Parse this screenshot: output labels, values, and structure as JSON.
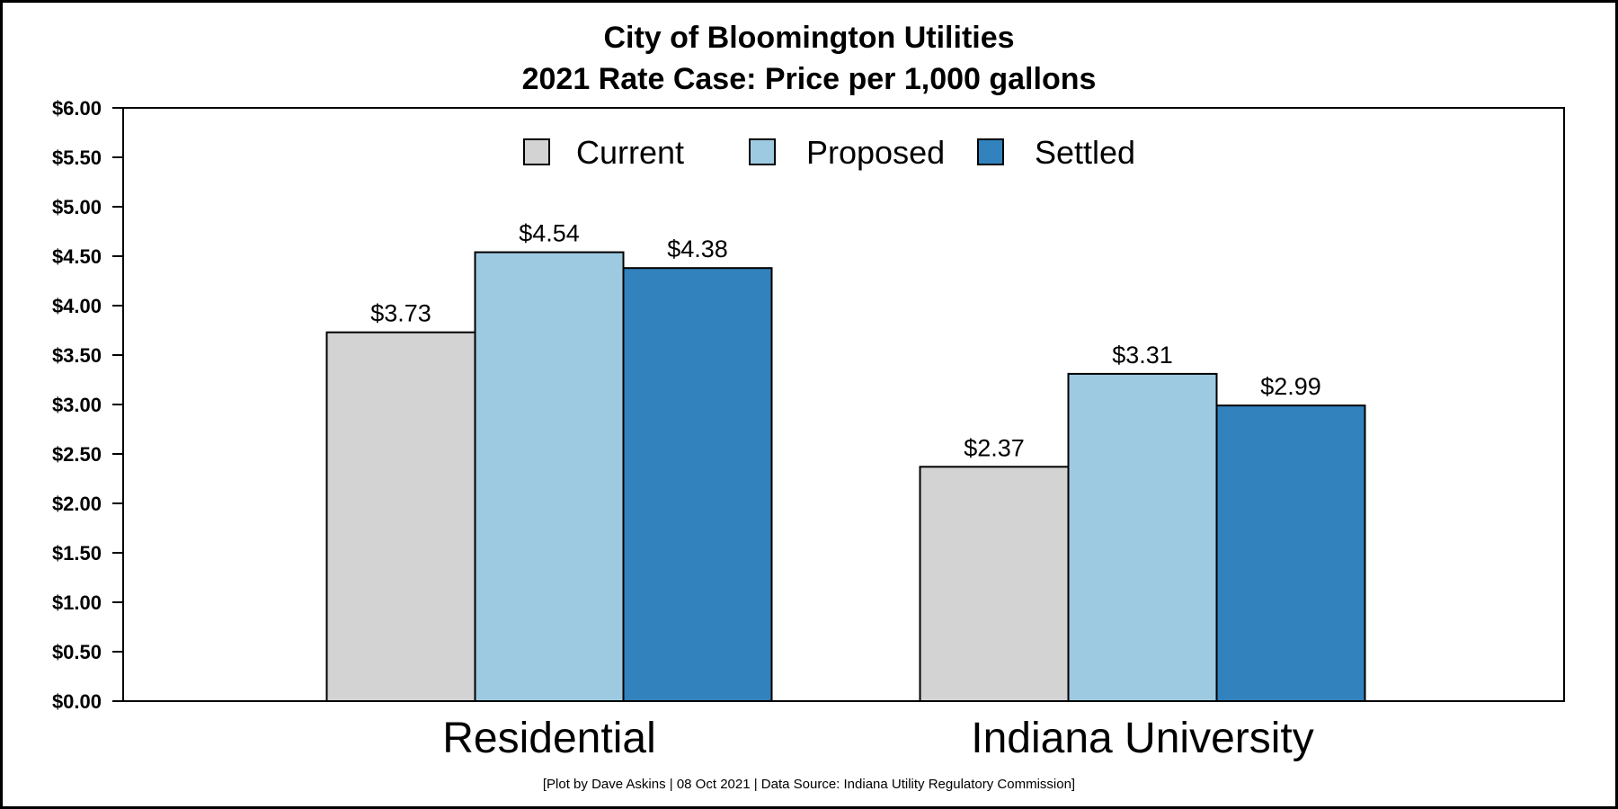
{
  "chart_data": {
    "type": "bar",
    "title": "City of Bloomington Utilities",
    "subtitle": "2021 Rate Case: Price per 1,000 gallons",
    "categories": [
      "Residential",
      "Indiana University"
    ],
    "series": [
      {
        "name": "Current",
        "values": [
          3.73,
          2.37
        ],
        "color": "#d3d3d3"
      },
      {
        "name": "Proposed",
        "values": [
          4.54,
          3.31
        ],
        "color": "#9ecae1"
      },
      {
        "name": "Settled",
        "values": [
          4.38,
          2.99
        ],
        "color": "#3182bd"
      }
    ],
    "data_labels": [
      [
        "$3.73",
        "$2.37"
      ],
      [
        "$4.54",
        "$3.31"
      ],
      [
        "$4.38",
        "$2.99"
      ]
    ],
    "ylim": [
      0,
      6
    ],
    "yticks": [
      {
        "value": 0,
        "label": "$0.00"
      },
      {
        "value": 0.5,
        "label": "$0.50"
      },
      {
        "value": 1,
        "label": "$1.00"
      },
      {
        "value": 1.5,
        "label": "$1.50"
      },
      {
        "value": 2,
        "label": "$2.00"
      },
      {
        "value": 2.5,
        "label": "$2.50"
      },
      {
        "value": 3,
        "label": "$3.00"
      },
      {
        "value": 3.5,
        "label": "$3.50"
      },
      {
        "value": 4,
        "label": "$4.00"
      },
      {
        "value": 4.5,
        "label": "$4.50"
      },
      {
        "value": 5,
        "label": "$5.00"
      },
      {
        "value": 5.5,
        "label": "$5.50"
      },
      {
        "value": 6,
        "label": "$6.00"
      }
    ],
    "xlabel": "",
    "ylabel": "",
    "grid": false,
    "legend_position": "top-center",
    "caption": "[Plot by Dave Askins | 08 Oct 2021 | Data Source: Indiana Utility Regulatory Commission]"
  }
}
